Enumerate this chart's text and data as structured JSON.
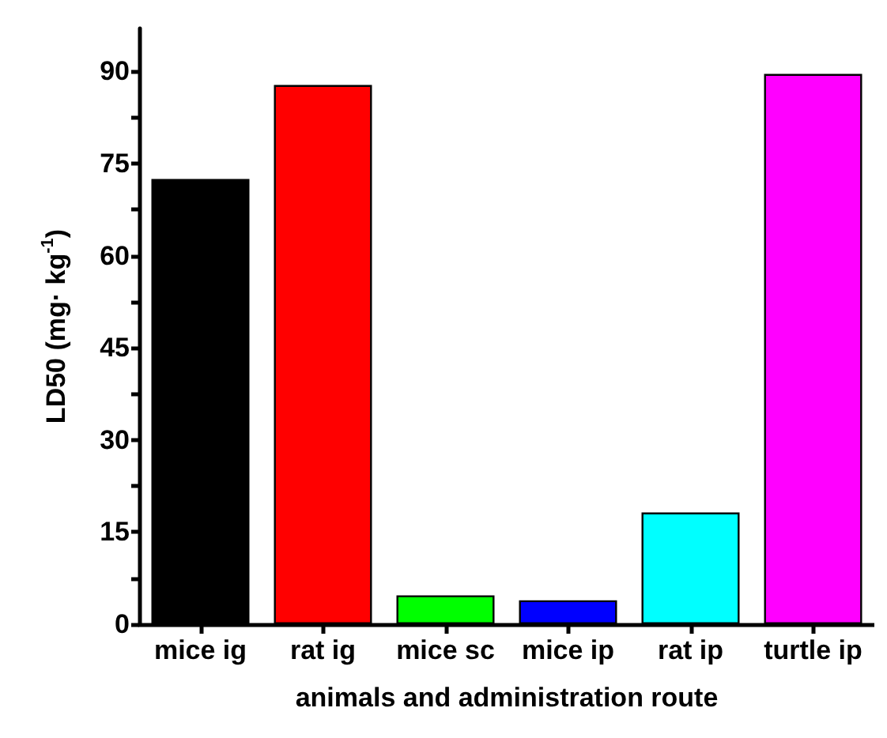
{
  "chart_data": {
    "type": "bar",
    "xlabel": "animals and administration route",
    "ylabel": "LD50 (mg· kg$^{-1}$)",
    "categories": [
      "mice ig",
      "rat ig",
      "mice sc",
      "mice ip",
      "rat ip",
      "turtle ip"
    ],
    "values": [
      72.5,
      87.8,
      4.7,
      3.9,
      18.2,
      89.6
    ],
    "colors": [
      "#000000",
      "#ff0000",
      "#00ff00",
      "#0000ff",
      "#00ffff",
      "#ff00ff"
    ],
    "ylim": [
      0,
      97
    ],
    "yticks": [
      0,
      {
        "value": 7.5,
        "label": null
      },
      15,
      {
        "value": 22.5,
        "label": null
      },
      30,
      {
        "value": 37.5,
        "label": null
      },
      45,
      {
        "value": 52.5,
        "label": null
      },
      60,
      {
        "value": 67.5,
        "label": null
      },
      75,
      {
        "value": 82.5,
        "label": null
      },
      90
    ],
    "data_labels": false
  }
}
